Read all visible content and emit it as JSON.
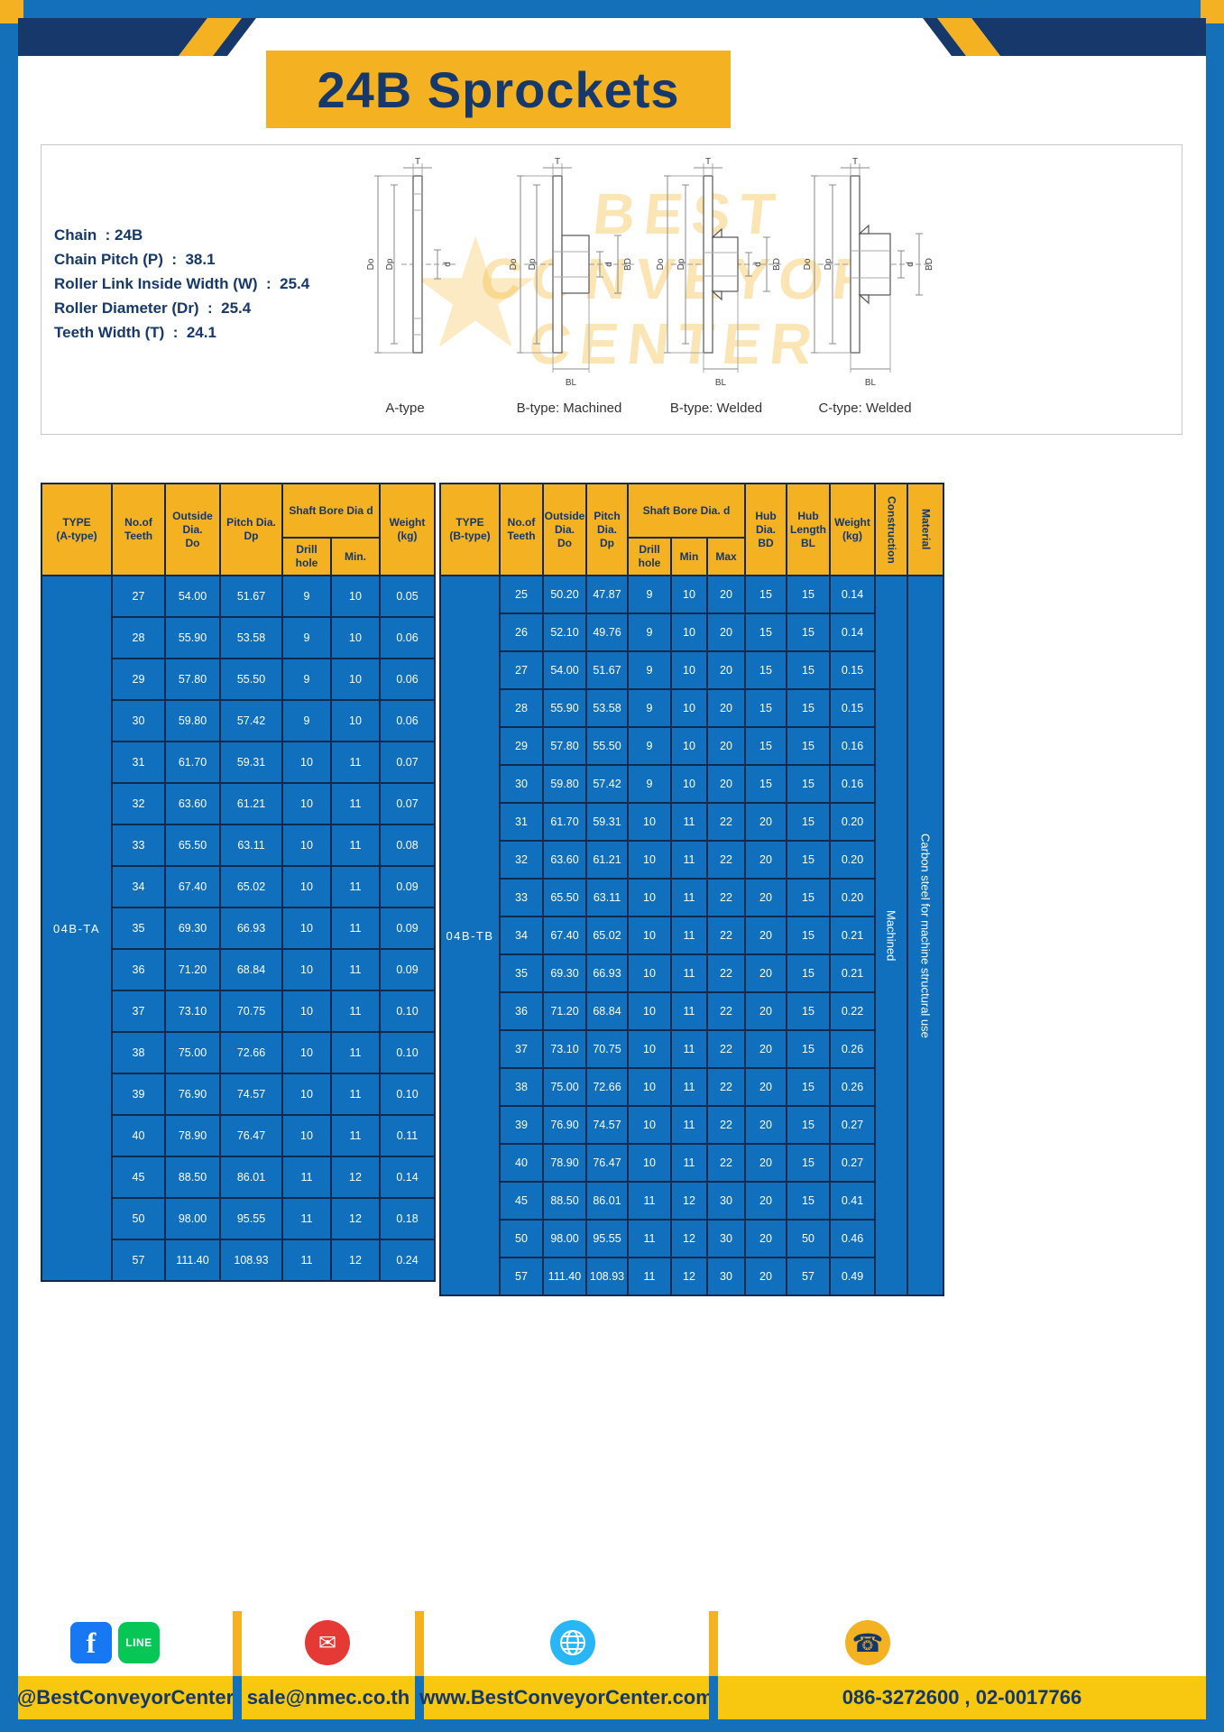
{
  "title": "24B Sprockets",
  "colors": {
    "navy": "#16386B",
    "gold": "#F4B223",
    "blue": "#1170BD",
    "frame_blue": "#1470B8"
  },
  "specs": [
    "Chain  : 24B",
    "Chain Pitch (P)  :  38.1",
    "Roller Link Inside Width (W)  :  25.4",
    "Roller Diameter (Dr)  :  25.4",
    "Teeth Width (T)  :  24.1"
  ],
  "watermark": {
    "line1": "BEST",
    "line2": "CONVEYOR",
    "line3": "CENTER"
  },
  "diagram_captions": [
    "A-type",
    "B-type: Machined",
    "B-type: Welded",
    "C-type: Welded"
  ],
  "diagram_labels": {
    "t": "T",
    "do": "Do",
    "dp": "Dp",
    "d": "d",
    "bd": "BD",
    "bl": "BL"
  },
  "table_a": {
    "type_header": "TYPE\n(A-type)",
    "type_value": "04B-TA",
    "headers": {
      "teeth": "No.of\nTeeth",
      "outside": "Outside\nDia.\nDo",
      "pitch": "Pitch Dia.\nDp",
      "shaft_group": "Shaft Bore Dia d",
      "drill": "Drill hole",
      "min": "Min.",
      "weight": "Weight\n(kg)"
    },
    "rows": [
      [
        "27",
        "54.00",
        "51.67",
        "9",
        "10",
        "0.05"
      ],
      [
        "28",
        "55.90",
        "53.58",
        "9",
        "10",
        "0.06"
      ],
      [
        "29",
        "57.80",
        "55.50",
        "9",
        "10",
        "0.06"
      ],
      [
        "30",
        "59.80",
        "57.42",
        "9",
        "10",
        "0.06"
      ],
      [
        "31",
        "61.70",
        "59.31",
        "10",
        "11",
        "0.07"
      ],
      [
        "32",
        "63.60",
        "61.21",
        "10",
        "11",
        "0.07"
      ],
      [
        "33",
        "65.50",
        "63.11",
        "10",
        "11",
        "0.08"
      ],
      [
        "34",
        "67.40",
        "65.02",
        "10",
        "11",
        "0.09"
      ],
      [
        "35",
        "69.30",
        "66.93",
        "10",
        "11",
        "0.09"
      ],
      [
        "36",
        "71.20",
        "68.84",
        "10",
        "11",
        "0.09"
      ],
      [
        "37",
        "73.10",
        "70.75",
        "10",
        "11",
        "0.10"
      ],
      [
        "38",
        "75.00",
        "72.66",
        "10",
        "11",
        "0.10"
      ],
      [
        "39",
        "76.90",
        "74.57",
        "10",
        "11",
        "0.10"
      ],
      [
        "40",
        "78.90",
        "76.47",
        "10",
        "11",
        "0.11"
      ],
      [
        "45",
        "88.50",
        "86.01",
        "11",
        "12",
        "0.14"
      ],
      [
        "50",
        "98.00",
        "95.55",
        "11",
        "12",
        "0.18"
      ],
      [
        "57",
        "111.40",
        "108.93",
        "11",
        "12",
        "0.24"
      ]
    ]
  },
  "table_b": {
    "type_header": "TYPE\n(B-type)",
    "type_value": "04B-TB",
    "headers": {
      "teeth": "No.of\nTeeth",
      "outside": "Outside\nDia.\nDo",
      "pitch": "Pitch\nDia.\nDp",
      "shaft_group": "Shaft Bore Dia.  d",
      "drill": "Drill hole",
      "min": "Min",
      "max": "Max",
      "hub_dia": "Hub\nDia.\nBD",
      "hub_len": "Hub\nLength\nBL",
      "weight": "Weight\n(kg)",
      "construction": "Construction",
      "material": "Material"
    },
    "construction_value": "Machined",
    "material_value": "Carbon steel for machine structural use",
    "rows": [
      [
        "25",
        "50.20",
        "47.87",
        "9",
        "10",
        "20",
        "15",
        "15",
        "0.14"
      ],
      [
        "26",
        "52.10",
        "49.76",
        "9",
        "10",
        "20",
        "15",
        "15",
        "0.14"
      ],
      [
        "27",
        "54.00",
        "51.67",
        "9",
        "10",
        "20",
        "15",
        "15",
        "0.15"
      ],
      [
        "28",
        "55.90",
        "53.58",
        "9",
        "10",
        "20",
        "15",
        "15",
        "0.15"
      ],
      [
        "29",
        "57.80",
        "55.50",
        "9",
        "10",
        "20",
        "15",
        "15",
        "0.16"
      ],
      [
        "30",
        "59.80",
        "57.42",
        "9",
        "10",
        "20",
        "15",
        "15",
        "0.16"
      ],
      [
        "31",
        "61.70",
        "59.31",
        "10",
        "11",
        "22",
        "20",
        "15",
        "0.20"
      ],
      [
        "32",
        "63.60",
        "61.21",
        "10",
        "11",
        "22",
        "20",
        "15",
        "0.20"
      ],
      [
        "33",
        "65.50",
        "63.11",
        "10",
        "11",
        "22",
        "20",
        "15",
        "0.20"
      ],
      [
        "34",
        "67.40",
        "65.02",
        "10",
        "11",
        "22",
        "20",
        "15",
        "0.21"
      ],
      [
        "35",
        "69.30",
        "66.93",
        "10",
        "11",
        "22",
        "20",
        "15",
        "0.21"
      ],
      [
        "36",
        "71.20",
        "68.84",
        "10",
        "11",
        "22",
        "20",
        "15",
        "0.22"
      ],
      [
        "37",
        "73.10",
        "70.75",
        "10",
        "11",
        "22",
        "20",
        "15",
        "0.26"
      ],
      [
        "38",
        "75.00",
        "72.66",
        "10",
        "11",
        "22",
        "20",
        "15",
        "0.26"
      ],
      [
        "39",
        "76.90",
        "74.57",
        "10",
        "11",
        "22",
        "20",
        "15",
        "0.27"
      ],
      [
        "40",
        "78.90",
        "76.47",
        "10",
        "11",
        "22",
        "20",
        "15",
        "0.27"
      ],
      [
        "45",
        "88.50",
        "86.01",
        "11",
        "12",
        "30",
        "20",
        "15",
        "0.41"
      ],
      [
        "50",
        "98.00",
        "95.55",
        "11",
        "12",
        "30",
        "20",
        "50",
        "0.46"
      ],
      [
        "57",
        "111.40",
        "108.93",
        "11",
        "12",
        "30",
        "20",
        "57",
        "0.49"
      ]
    ]
  },
  "footer": {
    "facebook_handle": "@BestConveyorCenter",
    "email": "sale@nmec.co.th",
    "website": "www.BestConveyorCenter.com",
    "phone": "086-3272600 , 02-0017766"
  },
  "icons": {
    "facebook": "f",
    "line": "LINE",
    "email": "✉",
    "phone": "☎",
    "star": "★"
  }
}
